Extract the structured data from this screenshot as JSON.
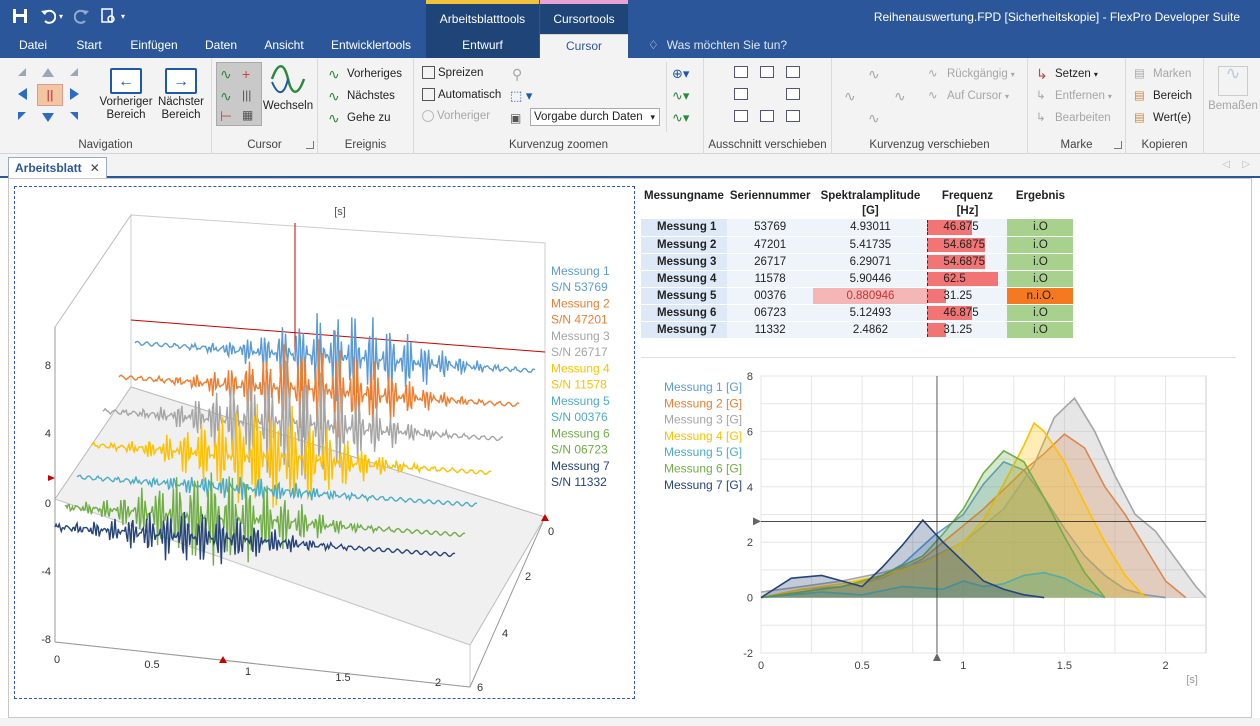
{
  "window": {
    "title": "Reihenauswertung.FPD [Sicherheitskopie] - FlexPro Developer Suite"
  },
  "context_groups": [
    {
      "label": "Arbeitsblatttools",
      "color": "#f3c23b"
    },
    {
      "label": "Cursortools",
      "color": "#e9a2d4"
    }
  ],
  "tabs": [
    "Datei",
    "Start",
    "Einfügen",
    "Daten",
    "Ansicht",
    "Entwicklertools",
    "Entwurf",
    "Cursor"
  ],
  "tell_me": "Was möchten Sie tun?",
  "ribbon": {
    "navigation": {
      "label": "Navigation",
      "prev": "Vorheriger Bereich",
      "next": "Nächster Bereich"
    },
    "cursor": {
      "label": "Cursor",
      "switch": "Wechseln"
    },
    "ereignis": {
      "label": "Ereignis",
      "prev": "Vorheriges",
      "next": "Nächstes",
      "goto": "Gehe zu"
    },
    "zoom": {
      "label": "Kurvenzug zoomen",
      "spread": "Spreizen",
      "auto": "Automatisch",
      "prev": "Vorheriger",
      "preset": "Vorgabe durch Daten"
    },
    "ausschnitt": {
      "label": "Ausschnitt verschieben"
    },
    "kurvenzug": {
      "label": "Kurvenzug verschieben",
      "undo": "Rückgängig",
      "on_cursor": "Auf Cursor"
    },
    "marke": {
      "label": "Marke",
      "set": "Setzen",
      "remove": "Entfernen",
      "edit": "Bearbeiten"
    },
    "kopieren": {
      "label": "Kopieren",
      "marks": "Marken",
      "range": "Bereich",
      "values": "Wert(e)"
    },
    "bemass": "Bemaßen"
  },
  "document_tab": "Arbeitsblatt",
  "results_table": {
    "headers": [
      "Messungname",
      "Seriennummer",
      "Spektralamplitude [G]",
      "Frequenz [Hz]",
      "Ergebnis"
    ],
    "rows": [
      {
        "name": "Messung 1",
        "serial": "53769",
        "amp": "4.93011",
        "freq": "46.875",
        "result": "i.O",
        "freq_value": 46.875
      },
      {
        "name": "Messung 2",
        "serial": "47201",
        "amp": "5.41735",
        "freq": "54.6875",
        "result": "i.O",
        "freq_value": 54.6875
      },
      {
        "name": "Messung 3",
        "serial": "26717",
        "amp": "6.29071",
        "freq": "54.6875",
        "result": "i.O",
        "freq_value": 54.6875
      },
      {
        "name": "Messung 4",
        "serial": "11578",
        "amp": "5.90446",
        "freq": "62.5",
        "result": "i.O",
        "freq_value": 62.5
      },
      {
        "name": "Messung 5",
        "serial": "00376",
        "amp": "0.880946",
        "freq": "31.25",
        "result": "n.i.O.",
        "freq_value": 31.25
      },
      {
        "name": "Messung 6",
        "serial": "06723",
        "amp": "5.12493",
        "freq": "46.875",
        "result": "i.O",
        "freq_value": 46.875
      },
      {
        "name": "Messung 7",
        "serial": "11332",
        "amp": "2.4862",
        "freq": "31.25",
        "result": "i.O",
        "freq_value": 31.25
      }
    ]
  },
  "colors": {
    "series": [
      "#5b9bd5",
      "#ed7d31",
      "#a5a5a5",
      "#ffc000",
      "#4bacc6",
      "#70ad47",
      "#264478"
    ],
    "ok": "#a9d18e",
    "nok": "#f47920",
    "low_amp": "#f4b6b6",
    "freq_bar": "#f27474"
  },
  "chart_data": [
    {
      "type": "line",
      "title": "",
      "subtitle": "",
      "z_unit": "[s]",
      "y_ticks": [
        "8",
        "4",
        "0",
        "-4",
        "-8"
      ],
      "x_ticks": [
        "0",
        "0.5",
        "1",
        "1.5",
        "2"
      ],
      "depth_ticks": [
        "0",
        "2",
        "4",
        "6"
      ],
      "legend": [
        {
          "name": "Messung 1",
          "serial": "S/N 53769"
        },
        {
          "name": "Messung 2",
          "serial": "S/N 47201"
        },
        {
          "name": "Messung 3",
          "serial": "S/N 26717"
        },
        {
          "name": "Messung 4",
          "serial": "S/N 11578"
        },
        {
          "name": "Messung 5",
          "serial": "S/N 00376"
        },
        {
          "name": "Messung 6",
          "serial": "S/N 06723"
        },
        {
          "name": "Messung 7",
          "serial": "S/N 11332"
        }
      ]
    },
    {
      "type": "area",
      "xlabel": "[s]",
      "ylim": [
        -2,
        8
      ],
      "xlim": [
        0,
        2.2
      ],
      "x_ticks": [
        "0",
        "0.5",
        "1",
        "1.5",
        "2"
      ],
      "y_ticks": [
        "8",
        "6",
        "4",
        "2",
        "0",
        "-2"
      ],
      "cursor_x": 0.87,
      "cursor_y": 2.75,
      "series": [
        {
          "name": "Messung 1 [G]",
          "x": [
            0,
            0.2,
            0.4,
            0.55,
            0.7,
            0.85,
            1.0,
            1.1,
            1.2,
            1.3,
            1.4,
            1.5,
            1.6,
            1.7,
            1.8,
            1.9,
            2.0
          ],
          "values": [
            0,
            0.3,
            0.4,
            0.6,
            1.2,
            2.2,
            3.0,
            4.1,
            4.9,
            4.6,
            3.6,
            2.5,
            1.5,
            0.8,
            0.3,
            0.1,
            0
          ]
        },
        {
          "name": "Messung 2 [G]",
          "x": [
            0,
            0.2,
            0.4,
            0.6,
            0.8,
            0.9,
            1.0,
            1.1,
            1.2,
            1.3,
            1.4,
            1.5,
            1.6,
            1.7,
            1.8,
            1.9,
            2.0,
            2.1
          ],
          "values": [
            0,
            0.2,
            0.4,
            0.7,
            1.4,
            2.0,
            2.6,
            3.2,
            3.9,
            4.6,
            5.2,
            5.9,
            5.4,
            4.0,
            3.0,
            1.8,
            0.6,
            0
          ]
        },
        {
          "name": "Messung 3 [G]",
          "x": [
            0,
            0.2,
            0.4,
            0.6,
            0.8,
            1.0,
            1.2,
            1.35,
            1.45,
            1.55,
            1.65,
            1.75,
            1.85,
            1.95,
            2.05,
            2.15,
            2.2
          ],
          "values": [
            0.2,
            0.4,
            0.6,
            0.9,
            1.3,
            2.0,
            3.2,
            4.8,
            6.5,
            7.2,
            6.0,
            4.4,
            3.0,
            2.4,
            1.4,
            0.4,
            0
          ]
        },
        {
          "name": "Messung 4 [G]",
          "x": [
            0,
            0.2,
            0.4,
            0.6,
            0.8,
            1.0,
            1.1,
            1.2,
            1.3,
            1.35,
            1.4,
            1.5,
            1.6,
            1.7,
            1.8,
            1.9
          ],
          "values": [
            0,
            0.3,
            0.5,
            0.8,
            1.2,
            2.0,
            2.8,
            4.1,
            5.5,
            6.3,
            6.0,
            4.9,
            3.4,
            2.0,
            0.8,
            0
          ]
        },
        {
          "name": "Messung 5 [G]",
          "x": [
            0,
            0.3,
            0.5,
            0.7,
            0.9,
            1.0,
            1.1,
            1.2,
            1.3,
            1.4,
            1.5,
            1.6,
            1.7
          ],
          "values": [
            0,
            0.2,
            0.1,
            0.4,
            0.3,
            0.6,
            0.4,
            0.5,
            0.8,
            0.9,
            0.7,
            0.3,
            0
          ]
        },
        {
          "name": "Messung 6 [G]",
          "x": [
            0,
            0.2,
            0.4,
            0.6,
            0.8,
            0.9,
            1.0,
            1.1,
            1.2,
            1.3,
            1.4,
            1.5,
            1.6,
            1.7
          ],
          "values": [
            0,
            0.2,
            0.4,
            0.8,
            1.5,
            2.3,
            3.2,
            4.5,
            5.3,
            4.9,
            3.6,
            2.2,
            0.9,
            0
          ]
        },
        {
          "name": "Messung 7 [G]",
          "x": [
            0,
            0.15,
            0.3,
            0.5,
            0.6,
            0.7,
            0.8,
            0.9,
            1.0,
            1.1,
            1.2,
            1.3,
            1.4
          ],
          "values": [
            0,
            0.7,
            0.8,
            0.4,
            1.1,
            1.9,
            2.8,
            2.0,
            1.3,
            0.6,
            0.3,
            0.1,
            0
          ]
        }
      ]
    }
  ]
}
